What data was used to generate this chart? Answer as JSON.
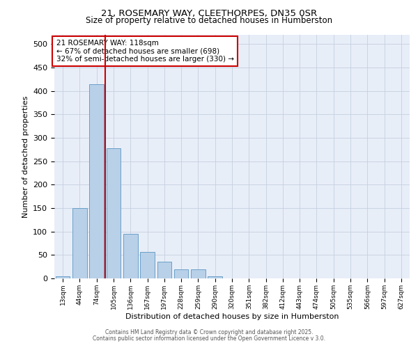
{
  "title1": "21, ROSEMARY WAY, CLEETHORPES, DN35 0SR",
  "title2": "Size of property relative to detached houses in Humberston",
  "xlabel": "Distribution of detached houses by size in Humberston",
  "ylabel": "Number of detached properties",
  "categories": [
    "13sqm",
    "44sqm",
    "74sqm",
    "105sqm",
    "136sqm",
    "167sqm",
    "197sqm",
    "228sqm",
    "259sqm",
    "290sqm",
    "320sqm",
    "351sqm",
    "382sqm",
    "412sqm",
    "443sqm",
    "474sqm",
    "505sqm",
    "535sqm",
    "566sqm",
    "597sqm",
    "627sqm"
  ],
  "values": [
    5,
    150,
    415,
    278,
    95,
    57,
    35,
    20,
    20,
    5,
    0,
    0,
    0,
    0,
    0,
    0,
    0,
    0,
    0,
    0,
    0
  ],
  "bar_color": "#b8d0e8",
  "bar_edge_color": "#6aa0c8",
  "red_line_x": 2.5,
  "annotation_text": "21 ROSEMARY WAY: 118sqm\n← 67% of detached houses are smaller (698)\n32% of semi-detached houses are larger (330) →",
  "annotation_box_color": "#ffffff",
  "annotation_box_edge": "#cc0000",
  "red_line_color": "#cc0000",
  "ylim": [
    0,
    520
  ],
  "yticks": [
    0,
    50,
    100,
    150,
    200,
    250,
    300,
    350,
    400,
    450,
    500
  ],
  "bg_color": "#e8eef8",
  "footer1": "Contains HM Land Registry data © Crown copyright and database right 2025.",
  "footer2": "Contains public sector information licensed under the Open Government Licence v 3.0."
}
